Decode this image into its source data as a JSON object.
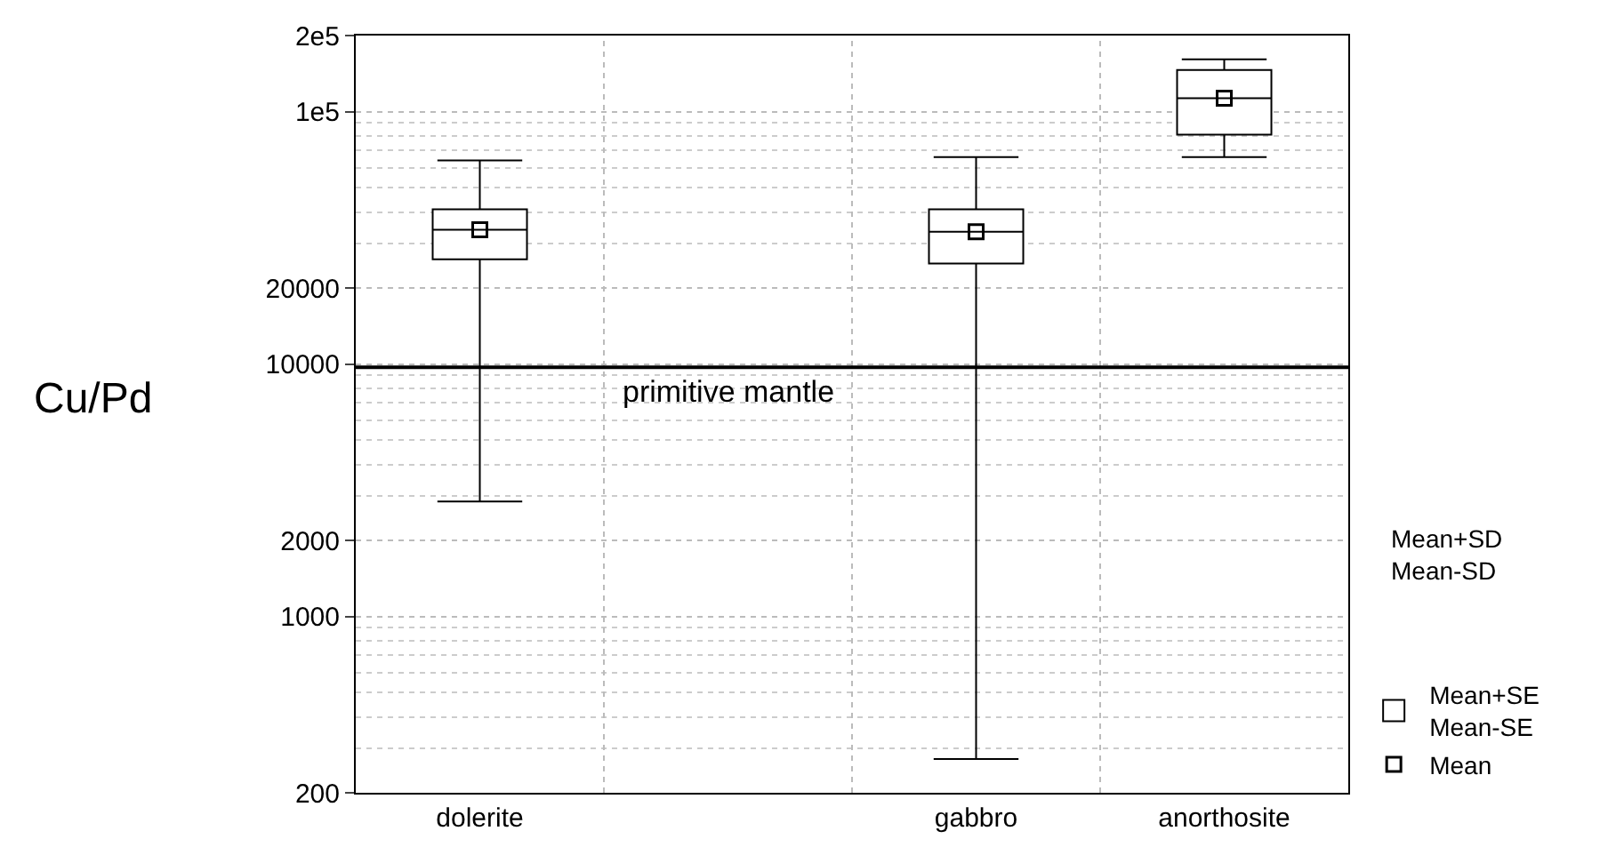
{
  "chart_data": {
    "type": "box",
    "ylabel": "Cu/Pd",
    "categories": [
      "dolerite",
      null,
      "gabbro",
      "anorthosite"
    ],
    "log": "y",
    "ylim": [
      200,
      200000
    ],
    "yticks": [
      200,
      1000,
      2000,
      10000,
      20000,
      {
        "value": 100000,
        "label": "1e5"
      },
      {
        "value": 200000,
        "label": "2e5"
      }
    ],
    "grid": true,
    "legend": "bottom right",
    "series": [
      {
        "name": "Mean+SE\nMean-SE",
        "color": "#000000",
        "boxes": [
          {
            "low": 2850,
            "q1": 26000,
            "median": 34000,
            "q3": 41000,
            "high": 64000
          },
          null,
          {
            "low": 272,
            "q1": 25000,
            "median": 33400,
            "q3": 41000,
            "high": 66000
          },
          {
            "low": 66000,
            "q1": 81000,
            "median": 113000,
            "q3": 146000,
            "high": 161000
          }
        ]
      },
      {
        "name": "Mean",
        "type": "scatter",
        "marker": "square",
        "color": "#000000",
        "values": [
          34000,
          null,
          33400,
          113000
        ]
      }
    ],
    "ref_lines": [
      {
        "axis": "y",
        "value": 9700,
        "label": "primitive mantle",
        "color": "#000000"
      }
    ],
    "annotations": [
      "Mean+SD\nMean-SD"
    ]
  }
}
